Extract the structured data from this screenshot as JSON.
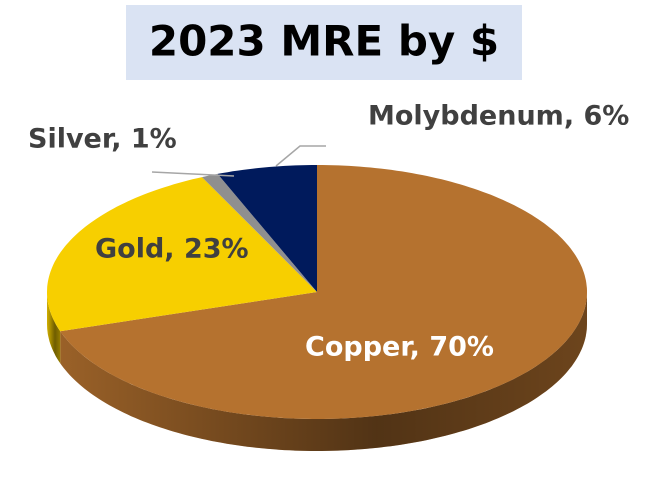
{
  "chart_data": {
    "type": "pie",
    "title": "2023 MRE by $",
    "categories": [
      "Copper",
      "Gold",
      "Silver",
      "Molybdenum"
    ],
    "values": [
      70,
      23,
      1,
      6
    ],
    "value_labels": [
      "Copper, 70%",
      "Gold, 23%",
      "Silver, 1%",
      "Molybdenum, 6%"
    ],
    "colors": [
      "#b5722f",
      "#f7cf00",
      "#8f8f8f",
      "#001a5c"
    ]
  }
}
